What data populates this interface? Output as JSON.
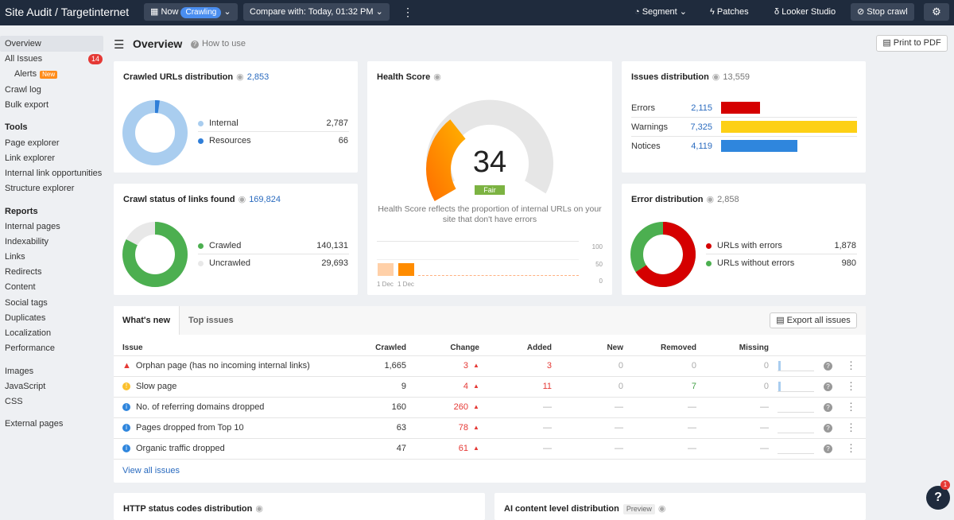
{
  "topbar": {
    "title": "Site Audit",
    "project": "Targetinternet",
    "now_label": "Now",
    "crawling_badge": "Crawling",
    "compare_label": "Compare with: Today, 01:32 PM",
    "segment_label": "Segment",
    "patches_label": "Patches",
    "looker_label": "Looker Studio",
    "stop_label": "Stop crawl"
  },
  "sidebar": {
    "overview": "Overview",
    "all_issues": "All Issues",
    "all_issues_count": "14",
    "alerts": "Alerts",
    "alerts_badge": "New",
    "crawl_log": "Crawl log",
    "bulk_export": "Bulk export",
    "tools_heading": "Tools",
    "tools": [
      "Page explorer",
      "Link explorer",
      "Internal link opportunities",
      "Structure explorer"
    ],
    "reports_heading": "Reports",
    "reports": [
      "Internal pages",
      "Indexability",
      "Links",
      "Redirects",
      "Content",
      "Social tags",
      "Duplicates",
      "Localization",
      "Performance"
    ],
    "resources": [
      "Images",
      "JavaScript",
      "CSS"
    ],
    "external": "External pages"
  },
  "header": {
    "title": "Overview",
    "how_to_use": "How to use",
    "print": "Print to PDF"
  },
  "crawled_urls": {
    "title": "Crawled URLs distribution",
    "total": "2,853",
    "items": [
      {
        "label": "Internal",
        "value": "2,787",
        "color": "#a9cdef"
      },
      {
        "label": "Resources",
        "value": "66",
        "color": "#2f7ed8"
      }
    ]
  },
  "crawl_status": {
    "title": "Crawl status of links found",
    "total": "169,824",
    "items": [
      {
        "label": "Crawled",
        "value": "140,131",
        "color": "#4caf50"
      },
      {
        "label": "Uncrawled",
        "value": "29,693",
        "color": "#e8e8e8"
      }
    ]
  },
  "health": {
    "title": "Health Score",
    "score": "34",
    "rating": "Fair",
    "score_fraction": 0.34,
    "description_1": "Health Score reflects the proportion of internal URLs on your",
    "description_2": "site that don't have errors",
    "axis": [
      "100",
      "50",
      "0"
    ],
    "dates": [
      "1 Dec",
      "1 Dec"
    ],
    "history": [
      34,
      34
    ]
  },
  "issues_distribution": {
    "title": "Issues distribution",
    "total": "13,559",
    "items": [
      {
        "label": "Errors",
        "value": "2,115",
        "color": "#d50000",
        "num": 2115
      },
      {
        "label": "Warnings",
        "value": "7,325",
        "color": "#fdd015",
        "num": 7325
      },
      {
        "label": "Notices",
        "value": "4,119",
        "color": "#2f86dd",
        "num": 4119
      }
    ]
  },
  "error_distribution": {
    "title": "Error distribution",
    "total": "2,858",
    "items": [
      {
        "label": "URLs with errors",
        "value": "1,878",
        "color": "#d50000"
      },
      {
        "label": "URLs without errors",
        "value": "980",
        "color": "#4caf50"
      }
    ]
  },
  "issues_table": {
    "tabs": [
      "What's new",
      "Top issues"
    ],
    "export_label": "Export all issues",
    "columns": [
      "Issue",
      "Crawled",
      "Change",
      "Added",
      "New",
      "Removed",
      "Missing"
    ],
    "rows": [
      {
        "icon": "error",
        "name": "Orphan page (has no incoming internal links)",
        "crawled": "1,665",
        "change": "3",
        "added": "3",
        "new": "0",
        "removed": "0",
        "missing": "0"
      },
      {
        "icon": "warning",
        "name": "Slow page",
        "crawled": "9",
        "change": "4",
        "added": "11",
        "new": "0",
        "removed": "7",
        "missing": "0"
      },
      {
        "icon": "notice",
        "name": "No. of referring domains dropped",
        "crawled": "160",
        "change": "260",
        "added": "—",
        "new": "—",
        "removed": "—",
        "missing": "—"
      },
      {
        "icon": "notice",
        "name": "Pages dropped from Top 10",
        "crawled": "63",
        "change": "78",
        "added": "—",
        "new": "—",
        "removed": "—",
        "missing": "—"
      },
      {
        "icon": "notice",
        "name": "Organic traffic dropped",
        "crawled": "47",
        "change": "61",
        "added": "—",
        "new": "—",
        "removed": "—",
        "missing": "—"
      }
    ],
    "view_all": "View all issues"
  },
  "bottom": {
    "http_title": "HTTP status codes distribution",
    "ai_title": "AI content level distribution",
    "preview_badge": "Preview"
  },
  "help": {
    "badge": "1",
    "label": "?"
  }
}
